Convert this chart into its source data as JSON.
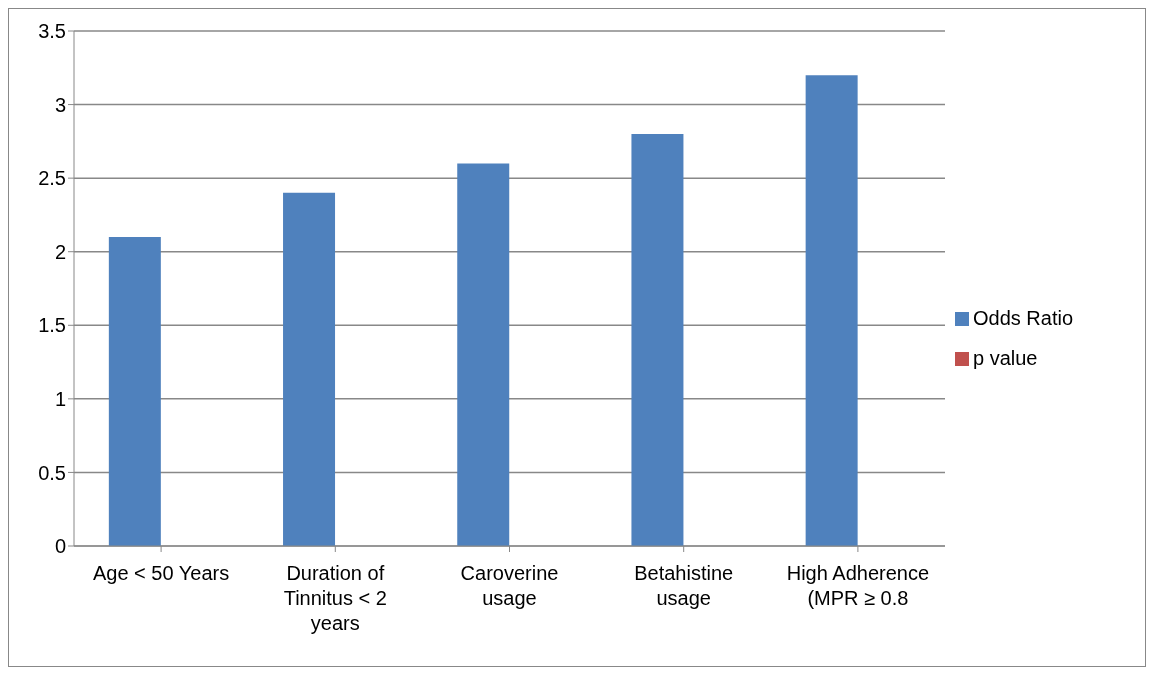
{
  "chart_data": {
    "type": "bar",
    "categories": [
      "Age < 50 Years",
      "Duration of Tinnitus < 2 years",
      "Caroverine usage",
      "Betahistine usage",
      "High Adherence (MPR ≥ 0.8"
    ],
    "series": [
      {
        "name": "Odds Ratio",
        "color": "#4f81bd",
        "values": [
          2.1,
          2.4,
          2.6,
          2.8,
          3.2
        ]
      },
      {
        "name": "p value",
        "color": "#c0504d",
        "values": [
          null,
          null,
          null,
          null,
          null
        ]
      }
    ],
    "ylim": [
      0,
      3.5
    ],
    "yticks": [
      0,
      0.5,
      1,
      1.5,
      2,
      2.5,
      3,
      3.5
    ],
    "grid": "y",
    "legend": "right"
  }
}
